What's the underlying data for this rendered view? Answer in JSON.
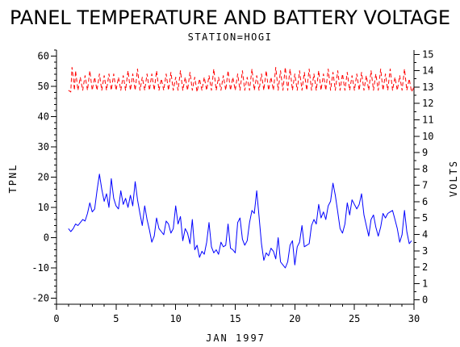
{
  "chart_data": {
    "type": "line",
    "title": "PANEL TEMPERATURE AND BATTERY VOLTAGE",
    "subtitle": "STATION=HOGI",
    "xlabel": "JAN 1997",
    "ylabel_left": "TPNL",
    "ylabel_right": "VOLTS",
    "xlim": [
      0,
      30
    ],
    "ylim_left": [
      -22,
      62
    ],
    "ylim_right": [
      -0.26,
      15.26
    ],
    "x_ticks": [
      0,
      5,
      10,
      15,
      20,
      25,
      30
    ],
    "y_left_ticks": [
      -20,
      -10,
      0,
      10,
      20,
      30,
      40,
      50,
      60
    ],
    "y_right_ticks": [
      0,
      1,
      2,
      3,
      4,
      5,
      6,
      7,
      8,
      9,
      10,
      11,
      12,
      13,
      14,
      15
    ],
    "grid": false,
    "series": [
      {
        "axis": "left",
        "color": "#0000ff",
        "style": "solid",
        "points": [
          [
            1.0,
            3.0
          ],
          [
            1.2,
            2.0
          ],
          [
            1.4,
            3.0
          ],
          [
            1.6,
            4.5
          ],
          [
            1.8,
            4.0
          ],
          [
            2.0,
            5.0
          ],
          [
            2.2,
            6.0
          ],
          [
            2.4,
            5.5
          ],
          [
            2.6,
            8.0
          ],
          [
            2.8,
            11.5
          ],
          [
            3.0,
            8.5
          ],
          [
            3.2,
            9.5
          ],
          [
            3.4,
            15.5
          ],
          [
            3.6,
            21.0
          ],
          [
            3.8,
            16.0
          ],
          [
            4.0,
            12.0
          ],
          [
            4.2,
            14.5
          ],
          [
            4.4,
            10.0
          ],
          [
            4.6,
            19.5
          ],
          [
            4.8,
            13.0
          ],
          [
            5.0,
            10.5
          ],
          [
            5.2,
            9.5
          ],
          [
            5.4,
            15.5
          ],
          [
            5.6,
            11.0
          ],
          [
            5.8,
            13.0
          ],
          [
            6.0,
            10.0
          ],
          [
            6.2,
            14.0
          ],
          [
            6.4,
            10.5
          ],
          [
            6.6,
            18.5
          ],
          [
            6.8,
            12.5
          ],
          [
            7.0,
            8.0
          ],
          [
            7.2,
            4.0
          ],
          [
            7.4,
            10.5
          ],
          [
            7.6,
            6.0
          ],
          [
            7.8,
            2.5
          ],
          [
            8.0,
            -1.5
          ],
          [
            8.2,
            0.5
          ],
          [
            8.4,
            6.5
          ],
          [
            8.6,
            3.0
          ],
          [
            8.8,
            2.0
          ],
          [
            9.0,
            1.0
          ],
          [
            9.2,
            5.5
          ],
          [
            9.4,
            4.5
          ],
          [
            9.6,
            1.5
          ],
          [
            9.8,
            3.0
          ],
          [
            10.0,
            10.5
          ],
          [
            10.2,
            4.5
          ],
          [
            10.4,
            7.0
          ],
          [
            10.6,
            -1.0
          ],
          [
            10.8,
            3.0
          ],
          [
            11.0,
            1.5
          ],
          [
            11.2,
            -2.0
          ],
          [
            11.4,
            6.0
          ],
          [
            11.6,
            -4.0
          ],
          [
            11.8,
            -2.5
          ],
          [
            12.0,
            -6.5
          ],
          [
            12.2,
            -4.5
          ],
          [
            12.4,
            -5.5
          ],
          [
            12.6,
            -1.5
          ],
          [
            12.8,
            5.0
          ],
          [
            13.0,
            -3.0
          ],
          [
            13.2,
            -5.0
          ],
          [
            13.4,
            -4.0
          ],
          [
            13.6,
            -5.5
          ],
          [
            13.8,
            -1.5
          ],
          [
            14.0,
            -3.0
          ],
          [
            14.2,
            -2.5
          ],
          [
            14.4,
            4.5
          ],
          [
            14.6,
            -3.5
          ],
          [
            14.8,
            -4.0
          ],
          [
            15.0,
            -5.0
          ],
          [
            15.2,
            5.0
          ],
          [
            15.4,
            6.5
          ],
          [
            15.6,
            -0.5
          ],
          [
            15.8,
            -2.5
          ],
          [
            16.0,
            -1.0
          ],
          [
            16.2,
            5.0
          ],
          [
            16.4,
            9.0
          ],
          [
            16.6,
            8.0
          ],
          [
            16.8,
            15.5
          ],
          [
            17.0,
            7.0
          ],
          [
            17.2,
            -2.0
          ],
          [
            17.4,
            -7.5
          ],
          [
            17.6,
            -5.0
          ],
          [
            17.8,
            -6.0
          ],
          [
            18.0,
            -3.5
          ],
          [
            18.2,
            -4.5
          ],
          [
            18.4,
            -7.0
          ],
          [
            18.6,
            0.0
          ],
          [
            18.8,
            -8.0
          ],
          [
            19.0,
            -9.0
          ],
          [
            19.2,
            -10.0
          ],
          [
            19.4,
            -8.0
          ],
          [
            19.6,
            -2.5
          ],
          [
            19.8,
            -1.0
          ],
          [
            20.0,
            -9.0
          ],
          [
            20.2,
            -3.0
          ],
          [
            20.4,
            -1.5
          ],
          [
            20.6,
            4.0
          ],
          [
            20.8,
            -3.0
          ],
          [
            21.0,
            -2.5
          ],
          [
            21.2,
            -2.0
          ],
          [
            21.4,
            4.0
          ],
          [
            21.6,
            6.0
          ],
          [
            21.8,
            4.5
          ],
          [
            22.0,
            11.0
          ],
          [
            22.2,
            6.5
          ],
          [
            22.4,
            8.5
          ],
          [
            22.6,
            6.0
          ],
          [
            22.8,
            10.5
          ],
          [
            23.0,
            12.0
          ],
          [
            23.2,
            18.0
          ],
          [
            23.4,
            14.0
          ],
          [
            23.6,
            8.5
          ],
          [
            23.8,
            3.0
          ],
          [
            24.0,
            1.5
          ],
          [
            24.2,
            4.5
          ],
          [
            24.4,
            11.5
          ],
          [
            24.6,
            7.5
          ],
          [
            24.8,
            12.5
          ],
          [
            25.0,
            11.0
          ],
          [
            25.2,
            9.5
          ],
          [
            25.4,
            11.0
          ],
          [
            25.6,
            14.5
          ],
          [
            25.8,
            7.5
          ],
          [
            26.0,
            4.0
          ],
          [
            26.2,
            0.5
          ],
          [
            26.4,
            6.0
          ],
          [
            26.6,
            7.5
          ],
          [
            26.8,
            3.5
          ],
          [
            27.0,
            0.5
          ],
          [
            27.2,
            3.5
          ],
          [
            27.4,
            8.0
          ],
          [
            27.6,
            6.5
          ],
          [
            27.8,
            8.0
          ],
          [
            28.0,
            8.5
          ],
          [
            28.2,
            9.0
          ],
          [
            28.4,
            6.0
          ],
          [
            28.6,
            3.0
          ],
          [
            28.8,
            -1.5
          ],
          [
            29.0,
            1.0
          ],
          [
            29.2,
            9.0
          ],
          [
            29.4,
            2.0
          ],
          [
            29.6,
            -2.0
          ],
          [
            29.8,
            -1.0
          ]
        ]
      },
      {
        "axis": "right",
        "color": "#ff0000",
        "style": "dashed",
        "points": [
          [
            1.0,
            12.8
          ],
          [
            1.2,
            12.7
          ],
          [
            1.3,
            14.2
          ],
          [
            1.4,
            13.6
          ],
          [
            1.5,
            12.8
          ],
          [
            1.6,
            14.0
          ],
          [
            1.8,
            12.8
          ],
          [
            2.0,
            13.6
          ],
          [
            2.2,
            12.8
          ],
          [
            2.4,
            13.7
          ],
          [
            2.6,
            12.8
          ],
          [
            2.8,
            14.0
          ],
          [
            3.0,
            12.8
          ],
          [
            3.2,
            13.6
          ],
          [
            3.4,
            12.8
          ],
          [
            3.6,
            13.8
          ],
          [
            3.8,
            12.8
          ],
          [
            4.0,
            13.7
          ],
          [
            4.2,
            12.8
          ],
          [
            4.4,
            13.8
          ],
          [
            4.6,
            12.8
          ],
          [
            4.8,
            13.8
          ],
          [
            5.0,
            12.8
          ],
          [
            5.2,
            13.6
          ],
          [
            5.4,
            12.8
          ],
          [
            5.6,
            13.7
          ],
          [
            5.8,
            12.8
          ],
          [
            6.0,
            14.0
          ],
          [
            6.2,
            12.8
          ],
          [
            6.4,
            13.8
          ],
          [
            6.6,
            12.8
          ],
          [
            6.8,
            14.1
          ],
          [
            7.0,
            12.8
          ],
          [
            7.2,
            13.6
          ],
          [
            7.4,
            12.8
          ],
          [
            7.6,
            13.8
          ],
          [
            7.8,
            12.8
          ],
          [
            8.0,
            13.8
          ],
          [
            8.2,
            12.8
          ],
          [
            8.4,
            14.0
          ],
          [
            8.6,
            12.8
          ],
          [
            8.8,
            13.5
          ],
          [
            9.0,
            12.8
          ],
          [
            9.2,
            13.8
          ],
          [
            9.4,
            12.8
          ],
          [
            9.6,
            13.9
          ],
          [
            9.8,
            12.8
          ],
          [
            10.0,
            13.6
          ],
          [
            10.2,
            12.8
          ],
          [
            10.4,
            14.0
          ],
          [
            10.6,
            12.8
          ],
          [
            10.8,
            13.6
          ],
          [
            11.0,
            12.8
          ],
          [
            11.2,
            13.9
          ],
          [
            11.4,
            12.8
          ],
          [
            11.6,
            13.6
          ],
          [
            11.8,
            12.7
          ],
          [
            12.0,
            13.5
          ],
          [
            12.2,
            12.8
          ],
          [
            12.4,
            13.6
          ],
          [
            12.6,
            12.8
          ],
          [
            12.8,
            13.7
          ],
          [
            13.0,
            12.8
          ],
          [
            13.2,
            14.1
          ],
          [
            13.4,
            12.8
          ],
          [
            13.6,
            13.6
          ],
          [
            13.8,
            12.8
          ],
          [
            14.0,
            13.7
          ],
          [
            14.2,
            12.8
          ],
          [
            14.4,
            14.0
          ],
          [
            14.6,
            12.8
          ],
          [
            14.8,
            13.6
          ],
          [
            15.0,
            12.8
          ],
          [
            15.2,
            13.8
          ],
          [
            15.4,
            12.8
          ],
          [
            15.6,
            14.0
          ],
          [
            15.8,
            12.8
          ],
          [
            16.0,
            13.6
          ],
          [
            16.2,
            12.8
          ],
          [
            16.4,
            14.1
          ],
          [
            16.6,
            12.8
          ],
          [
            16.8,
            13.7
          ],
          [
            17.0,
            12.8
          ],
          [
            17.2,
            13.8
          ],
          [
            17.4,
            12.8
          ],
          [
            17.6,
            14.0
          ],
          [
            17.8,
            12.8
          ],
          [
            18.0,
            13.6
          ],
          [
            18.2,
            12.8
          ],
          [
            18.4,
            14.2
          ],
          [
            18.6,
            12.8
          ],
          [
            18.8,
            14.0
          ],
          [
            19.0,
            12.8
          ],
          [
            19.2,
            14.2
          ],
          [
            19.4,
            12.8
          ],
          [
            19.6,
            14.1
          ],
          [
            19.8,
            12.8
          ],
          [
            20.0,
            13.8
          ],
          [
            20.2,
            12.8
          ],
          [
            20.4,
            14.0
          ],
          [
            20.6,
            12.8
          ],
          [
            20.8,
            13.9
          ],
          [
            21.0,
            12.8
          ],
          [
            21.2,
            14.1
          ],
          [
            21.4,
            12.8
          ],
          [
            21.6,
            13.8
          ],
          [
            21.8,
            12.8
          ],
          [
            22.0,
            14.0
          ],
          [
            22.2,
            12.8
          ],
          [
            22.4,
            13.8
          ],
          [
            22.6,
            12.8
          ],
          [
            22.8,
            14.1
          ],
          [
            23.0,
            12.8
          ],
          [
            23.2,
            13.9
          ],
          [
            23.4,
            12.8
          ],
          [
            23.6,
            14.0
          ],
          [
            23.8,
            12.8
          ],
          [
            24.0,
            13.8
          ],
          [
            24.2,
            12.8
          ],
          [
            24.4,
            13.9
          ],
          [
            24.6,
            12.8
          ],
          [
            24.8,
            13.7
          ],
          [
            25.0,
            12.8
          ],
          [
            25.2,
            13.8
          ],
          [
            25.4,
            12.8
          ],
          [
            25.6,
            13.9
          ],
          [
            25.8,
            12.8
          ],
          [
            26.0,
            13.7
          ],
          [
            26.2,
            12.8
          ],
          [
            26.4,
            14.0
          ],
          [
            26.6,
            12.8
          ],
          [
            26.8,
            13.8
          ],
          [
            27.0,
            12.8
          ],
          [
            27.2,
            14.1
          ],
          [
            27.4,
            12.8
          ],
          [
            27.6,
            13.8
          ],
          [
            27.8,
            12.8
          ],
          [
            28.0,
            14.1
          ],
          [
            28.2,
            12.8
          ],
          [
            28.4,
            13.6
          ],
          [
            28.6,
            12.8
          ],
          [
            28.8,
            13.7
          ],
          [
            29.0,
            12.8
          ],
          [
            29.2,
            14.1
          ],
          [
            29.4,
            12.8
          ],
          [
            29.6,
            13.5
          ],
          [
            29.8,
            12.7
          ],
          [
            30.0,
            13.0
          ]
        ]
      }
    ]
  }
}
